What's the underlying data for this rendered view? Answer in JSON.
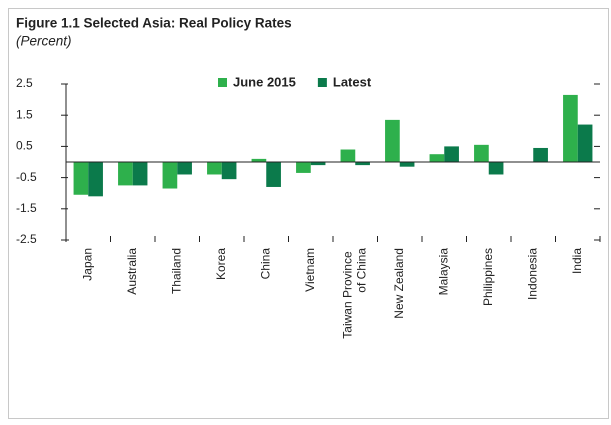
{
  "chart_data": {
    "type": "bar",
    "title": "Figure 1.1 Selected Asia: Real Policy Rates",
    "subtitle": "(Percent)",
    "categories": [
      "Japan",
      "Australia",
      "Thailand",
      "Korea",
      "China",
      "Vietnam",
      "Taiwan Province of China",
      "New Zealand",
      "Malaysia",
      "Philippines",
      "Indonesia",
      "India"
    ],
    "series": [
      {
        "name": "June 2015",
        "color": "#2eb04c",
        "values": [
          -1.05,
          -0.75,
          -0.85,
          -0.4,
          0.1,
          -0.35,
          0.4,
          1.35,
          0.25,
          0.55,
          null,
          2.15
        ]
      },
      {
        "name": "Latest",
        "color": "#0b7a4b",
        "values": [
          -1.1,
          -0.75,
          -0.4,
          -0.55,
          -0.8,
          -0.1,
          -0.1,
          -0.15,
          0.5,
          -0.4,
          0.45,
          1.2
        ]
      }
    ],
    "ylim": [
      -2.5,
      2.5
    ],
    "yticks": [
      -2.5,
      -1.5,
      -0.5,
      0.5,
      1.5,
      2.5
    ],
    "legend": "top"
  }
}
